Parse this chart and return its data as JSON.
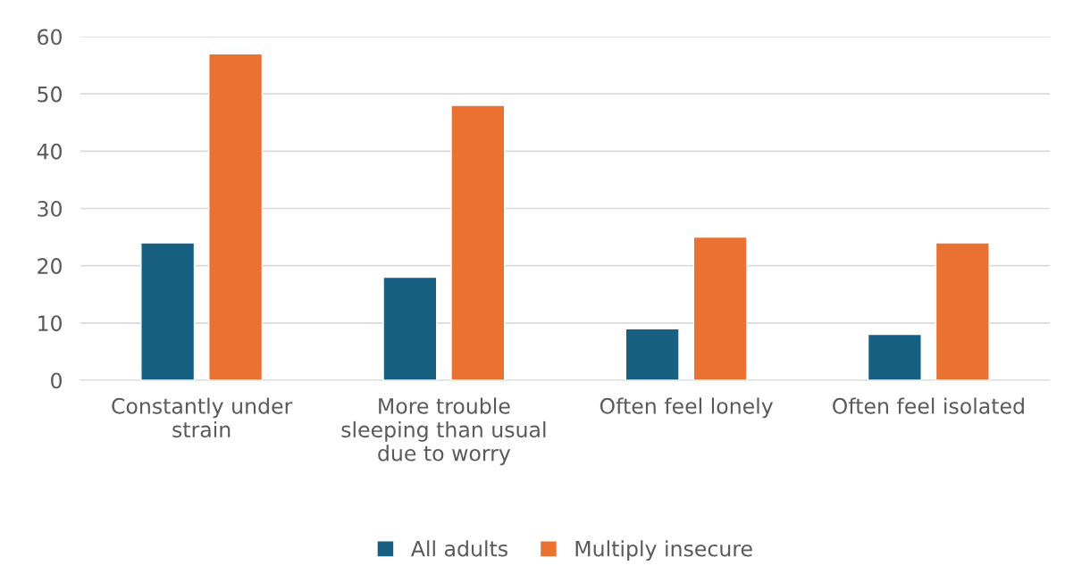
{
  "chart_data": {
    "type": "bar",
    "categories": [
      "Constantly under strain",
      "More trouble sleeping than usual due to worry",
      "Often feel lonely",
      "Often feel isolated"
    ],
    "series": [
      {
        "name": "All adults",
        "color": "#176082",
        "values": [
          24,
          18,
          9,
          8
        ]
      },
      {
        "name": "Multiply insecure",
        "color": "#e97132",
        "values": [
          57,
          48,
          25,
          24
        ]
      }
    ],
    "ylim": [
      0,
      60
    ],
    "yticks": [
      0,
      10,
      20,
      30,
      40,
      50,
      60
    ],
    "grid": "y",
    "legend": "bottom"
  }
}
